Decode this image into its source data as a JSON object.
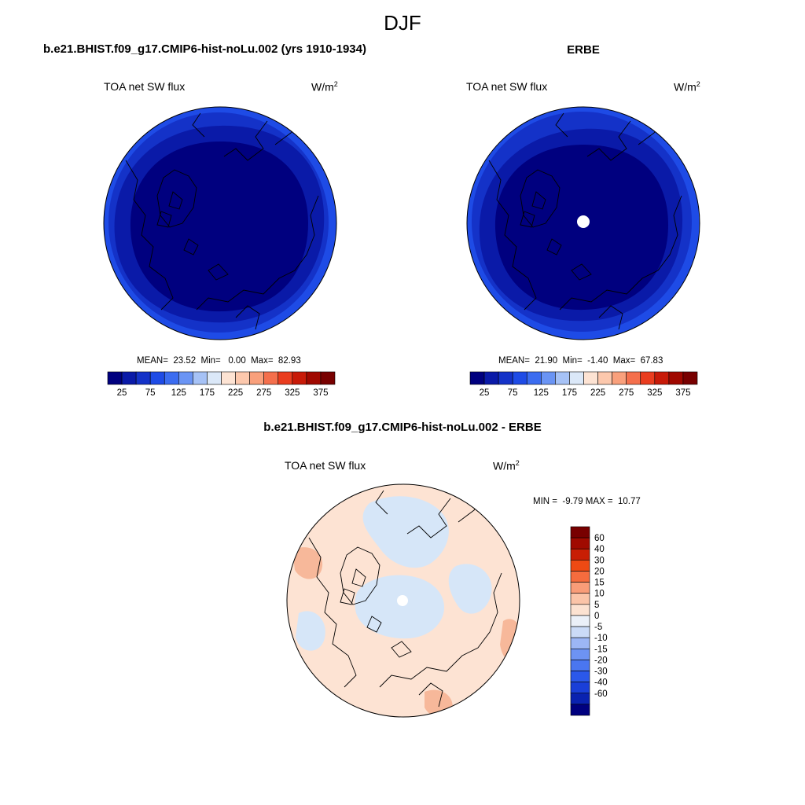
{
  "figure": {
    "title": "DJF",
    "left_panel_title": "b.e21.BHIST.f09_g17.CMIP6-hist-noLu.002 (yrs 1910-1934)",
    "right_panel_title": "ERBE",
    "diff_panel_title": "b.e21.BHIST.f09_g17.CMIP6-hist-noLu.002 - ERBE"
  },
  "panels": {
    "model": {
      "variable": "TOA net SW flux",
      "units_base": "W/m",
      "units_exp": "2",
      "stats": "MEAN=  23.52  Min=   0.00  Max=  82.93"
    },
    "obs": {
      "variable": "TOA net SW flux",
      "units_base": "W/m",
      "units_exp": "2",
      "stats": "MEAN=  21.90  Min=  -1.40  Max=  67.83"
    },
    "diff": {
      "variable": "TOA net SW flux",
      "units_base": "W/m",
      "units_exp": "2",
      "stats": "MIN =  -9.79 MAX =  10.77"
    }
  },
  "colorbars": {
    "main": {
      "colors": [
        "#00007f",
        "#0a1aa8",
        "#1432c8",
        "#1e4be6",
        "#3b6cf0",
        "#6a94f4",
        "#a6c2f6",
        "#dbe8f8",
        "#fde3d3",
        "#fcc8ad",
        "#f9a07c",
        "#f46f4c",
        "#ea3d1f",
        "#c81a08",
        "#a00800",
        "#780000"
      ],
      "tick_labels": [
        "25",
        "75",
        "125",
        "175",
        "225",
        "275",
        "325",
        "375"
      ]
    },
    "diff": {
      "colors": [
        "#00007f",
        "#0a22b0",
        "#1a3fd8",
        "#2b58ea",
        "#4a76f0",
        "#6d93f3",
        "#9cb6f5",
        "#cbdbf7",
        "#ebf0f8",
        "#fce2d1",
        "#fbc4a8",
        "#f99c78",
        "#f56c3e",
        "#ee4a14",
        "#c81e04",
        "#a00a00",
        "#780000"
      ],
      "tick_labels": [
        "60",
        "40",
        "30",
        "20",
        "15",
        "10",
        "5",
        "0",
        "-5",
        "-10",
        "-15",
        "-20",
        "-30",
        "-40",
        "-60"
      ]
    }
  },
  "map_colors": {
    "ocean_deep": "#00007f",
    "ring_mid": "#0a1aa8",
    "ring_outer": "#1432c8",
    "ring_edge": "#1e4be6",
    "diff_base": "#fde3d3",
    "diff_blue": "#d6e6f8",
    "diff_red": "#f7b89a"
  }
}
